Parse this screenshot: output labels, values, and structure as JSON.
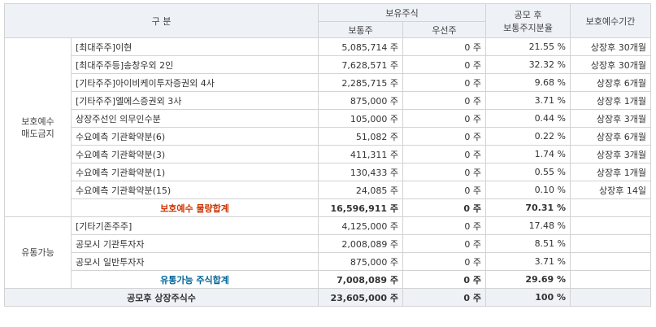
{
  "colors": {
    "header_bg": "#eef1f6",
    "border": "#d3d3d3",
    "subtotal_protected": "#cc3300",
    "subtotal_tradable": "#006699"
  },
  "headers": {
    "category": "구         분",
    "holdings_group": "보유주식",
    "common": "보통주",
    "preferred": "우선주",
    "ratio_line1": "공모 후",
    "ratio_line2": "보통주지분율",
    "period": "보호예수기간"
  },
  "groups": [
    {
      "label_line1": "보호예수",
      "label_line2": "매도금지",
      "rows": [
        {
          "holder": "[최대주주]이현",
          "common": "5,085,714 주",
          "preferred": "0 주",
          "ratio": "21.55 %",
          "period": "상장후 30개월"
        },
        {
          "holder": "[최대주주등]송창우외 2인",
          "common": "7,628,571 주",
          "preferred": "0 주",
          "ratio": "32.32 %",
          "period": "상장후 30개월"
        },
        {
          "holder": "[기타주주]아이비케이투자증권외 4사",
          "common": "2,285,715 주",
          "preferred": "0 주",
          "ratio": "9.68 %",
          "period": "상장후 6개월"
        },
        {
          "holder": "[기타주주]엘에스증권외 3사",
          "common": "875,000 주",
          "preferred": "0 주",
          "ratio": "3.71 %",
          "period": "상장후 1개월"
        },
        {
          "holder": "상장주선인 의무인수분",
          "common": "105,000 주",
          "preferred": "0 주",
          "ratio": "0.44 %",
          "period": "상장후 3개월"
        },
        {
          "holder": "수요예측 기관확약분(6)",
          "common": "51,082 주",
          "preferred": "0 주",
          "ratio": "0.22 %",
          "period": "상장후 6개월"
        },
        {
          "holder": "수요예측 기관확약분(3)",
          "common": "411,311 주",
          "preferred": "0 주",
          "ratio": "1.74 %",
          "period": "상장후 3개월"
        },
        {
          "holder": "수요예측 기관확약분(1)",
          "common": "130,433 주",
          "preferred": "0 주",
          "ratio": "0.55 %",
          "period": "상장후 1개월"
        },
        {
          "holder": "수요예측 기관확약분(15)",
          "common": "24,085 주",
          "preferred": "0 주",
          "ratio": "0.10 %",
          "period": "상장후 14일"
        }
      ],
      "subtotal": {
        "label": "보호예수 물량합계",
        "common": "16,596,911 주",
        "preferred": "0 주",
        "ratio": "70.31 %"
      }
    },
    {
      "label_line1": "유통가능",
      "label_line2": "",
      "rows": [
        {
          "holder": "[기타기존주주]",
          "common": "4,125,000 주",
          "preferred": "0 주",
          "ratio": "17.48 %",
          "period": ""
        },
        {
          "holder": "공모시 기관투자자",
          "common": "2,008,089 주",
          "preferred": "0 주",
          "ratio": "8.51 %",
          "period": ""
        },
        {
          "holder": "공모시 일반투자자",
          "common": "875,000 주",
          "preferred": "0 주",
          "ratio": "3.71 %",
          "period": ""
        }
      ],
      "subtotal": {
        "label": "유통가능 주식합계",
        "common": "7,008,089 주",
        "preferred": "0 주",
        "ratio": "29.69 %"
      }
    }
  ],
  "grand_total": {
    "label": "공모후 상장주식수",
    "common": "23,605,000 주",
    "preferred": "0 주",
    "ratio": "100 %"
  }
}
